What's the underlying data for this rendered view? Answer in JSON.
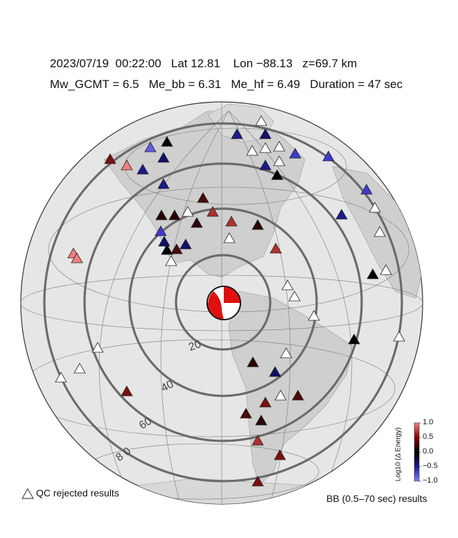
{
  "header": {
    "line1": "2023/07/19  00:22:00   Lat 12.81    Lon −88.13   z=69.7 km",
    "line2": "Mw_GCMT = 6.5   Me_bb = 6.31   Me_hf = 6.49   Duration = 47 sec"
  },
  "distance_rings": [
    {
      "deg": 20,
      "label": "20"
    },
    {
      "deg": 40,
      "label": "40"
    },
    {
      "deg": 60,
      "label": "60"
    },
    {
      "deg": 80,
      "label": "8 0"
    }
  ],
  "legend": {
    "qc_label": "QC rejected results",
    "bb_label": "BB (0.5–70 sec) results",
    "colorbar_title": "Log10 (Δ Energy)",
    "colorbar_ticks": [
      "1.0",
      "0.5",
      "0.0",
      "−0.5",
      "−1.0"
    ],
    "colorbar_colors": {
      "high": "#8b0000",
      "mid": "#000000",
      "low": "#3b3bd0",
      "lightest_high": "#f08080",
      "lightest_low": "#8080ff"
    }
  },
  "colors": {
    "land": "#c8c8c8",
    "ocean": "#e8e8e8",
    "ring": "#6b6b6b",
    "beachball_red": "#e01010"
  }
}
